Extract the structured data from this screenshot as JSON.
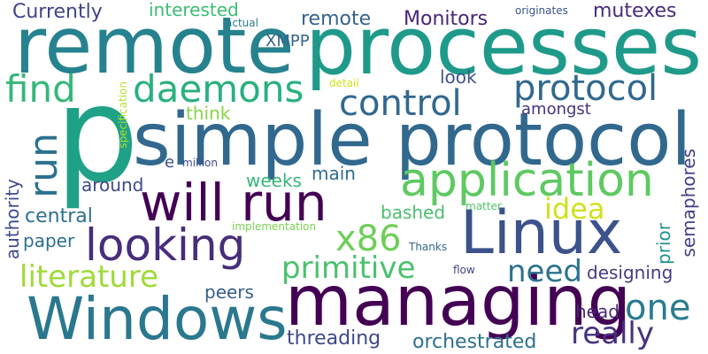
{
  "words": [
    {
      "text": "remote",
      "color": "#26828e"
    },
    {
      "text": "processes",
      "color": "#1f9a8a"
    },
    {
      "text": "p",
      "color": "#1fa187"
    },
    {
      "text": "simple protocol",
      "color": "#31688e"
    },
    {
      "text": "managing",
      "color": "#440154"
    },
    {
      "text": "Linux",
      "color": "#3b528b"
    },
    {
      "text": "Windows",
      "color": "#2a788e"
    },
    {
      "text": "will run",
      "color": "#440154"
    },
    {
      "text": "application",
      "color": "#5ec962"
    },
    {
      "text": "looking",
      "color": "#472d7b"
    },
    {
      "text": "find",
      "color": "#35b779"
    },
    {
      "text": "daemons",
      "color": "#2ab07f"
    },
    {
      "text": "control",
      "color": "#31688e"
    },
    {
      "text": "protocol",
      "color": "#31688e"
    },
    {
      "text": "run",
      "color": "#2c728e"
    },
    {
      "text": "x86",
      "color": "#6ece58"
    },
    {
      "text": "one",
      "color": "#287c8e"
    },
    {
      "text": "primitive",
      "color": "#4ac16d"
    },
    {
      "text": "literature",
      "color": "#a0da39"
    },
    {
      "text": "really",
      "color": "#46337e"
    },
    {
      "text": "need",
      "color": "#2c728e"
    },
    {
      "text": "idea",
      "color": "#d0e11c"
    },
    {
      "text": "Currently",
      "color": "#414487"
    },
    {
      "text": "Monitors",
      "color": "#482475"
    },
    {
      "text": "mutexes",
      "color": "#472c7a"
    },
    {
      "text": "remote",
      "color": "#33638d"
    },
    {
      "text": "interested",
      "color": "#3dbc74"
    },
    {
      "text": "XMPP",
      "color": "#33638d"
    },
    {
      "text": "look",
      "color": "#3b528b"
    },
    {
      "text": "amongst",
      "color": "#46337e"
    },
    {
      "text": "think",
      "color": "#86d549"
    },
    {
      "text": "semaphores",
      "color": "#424086"
    },
    {
      "text": "authority",
      "color": "#3e4a89"
    },
    {
      "text": "central",
      "color": "#2d708e"
    },
    {
      "text": "around",
      "color": "#3e4989"
    },
    {
      "text": "weeks",
      "color": "#35b779"
    },
    {
      "text": "main",
      "color": "#2f6c8e"
    },
    {
      "text": "bashed",
      "color": "#4ac16d"
    },
    {
      "text": "paper",
      "color": "#2e6e8e"
    },
    {
      "text": "prior",
      "color": "#21918c"
    },
    {
      "text": "designing",
      "color": "#443b84"
    },
    {
      "text": "peers",
      "color": "#365d8d"
    },
    {
      "text": "head",
      "color": "#482677"
    },
    {
      "text": "threading",
      "color": "#3e4989"
    },
    {
      "text": "orchestrated",
      "color": "#2d708e"
    },
    {
      "text": "e",
      "color": "#3b528b"
    },
    {
      "text": "million",
      "color": "#3e4a89"
    },
    {
      "text": "specification",
      "color": "#b5de2b"
    },
    {
      "text": "implementation",
      "color": "#7ad151"
    },
    {
      "text": "Thanks",
      "color": "#31688e"
    },
    {
      "text": "matter",
      "color": "#52c569"
    },
    {
      "text": "flow",
      "color": "#414487"
    },
    {
      "text": "detail",
      "color": "#d0e11c"
    },
    {
      "text": "actual",
      "color": "#2a788e"
    },
    {
      "text": "originates",
      "color": "#3b528b"
    }
  ]
}
